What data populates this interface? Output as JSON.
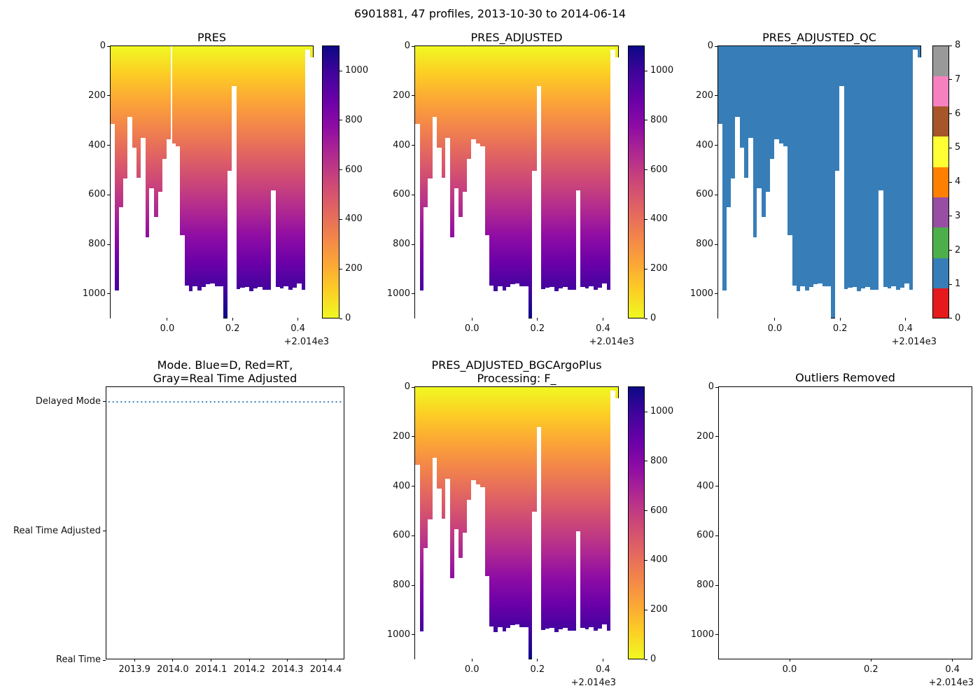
{
  "figure": {
    "title": "6901881, 47 profiles, 2013-10-30 to 2014-06-14"
  },
  "chart_data": {
    "type": "heatmap",
    "figure_title": "6901881, 47 profiles, 2013-10-30 to 2014-06-14",
    "n_profiles": 47,
    "x_range": [
      2013.8264,
      2014.4503
    ],
    "depth_axis_max": 1102,
    "profile_depths": [
      315,
      985,
      651,
      534,
      284,
      409,
      531,
      369,
      770,
      574,
      690,
      588,
      456,
      376,
      392,
      403,
      762,
      966,
      990,
      970,
      985,
      972,
      960,
      958,
      969,
      969,
      1150,
      503,
      160,
      981,
      975,
      973,
      988,
      979,
      973,
      983,
      983,
      583,
      973,
      979,
      969,
      983,
      974,
      958,
      983,
      15,
      45
    ],
    "plasma_stops": [
      "#f0f921",
      "#fcce25",
      "#fca636",
      "#f2844b",
      "#e16462",
      "#cc4778",
      "#b12a90",
      "#8f0da4",
      "#6a00a8",
      "#41049d",
      "#0d0887"
    ],
    "qc_bar_color": "#377eb8",
    "set1_colors": [
      "#e41a1c",
      "#377eb8",
      "#4daf4a",
      "#984ea3",
      "#ff7f00",
      "#ffff33",
      "#a65628",
      "#f781bf",
      "#999999"
    ],
    "panels": [
      {
        "id": "pres",
        "title": "PRES",
        "kind": "profile-pcolor",
        "cmap": "plasma_r",
        "yticks": [
          0,
          200,
          400,
          600,
          800,
          1000
        ],
        "xticks": [
          {
            "label": "0.0",
            "value": 2014.0
          },
          {
            "label": "0.2",
            "value": 2014.2
          },
          {
            "label": "0.4",
            "value": 2014.4
          }
        ],
        "offset_label": "+2.014e3",
        "surface_gap_line": {
          "x_frac": 0.2966,
          "depth": 392
        },
        "colorbar": {
          "kind": "gradient",
          "ticks": [
            0,
            200,
            400,
            600,
            800,
            1000
          ],
          "vmin": 0,
          "vmax": 1102
        }
      },
      {
        "id": "pres_adjusted",
        "title": "PRES_ADJUSTED",
        "kind": "profile-pcolor",
        "cmap": "plasma_r",
        "yticks": [
          0,
          200,
          400,
          600,
          800,
          1000
        ],
        "xticks": [
          {
            "label": "0.0",
            "value": 2014.0
          },
          {
            "label": "0.2",
            "value": 2014.2
          },
          {
            "label": "0.4",
            "value": 2014.4
          }
        ],
        "offset_label": "+2.014e3",
        "colorbar": {
          "kind": "gradient",
          "ticks": [
            0,
            200,
            400,
            600,
            800,
            1000
          ],
          "vmin": 0,
          "vmax": 1102
        }
      },
      {
        "id": "qc",
        "title": "PRES_ADJUSTED_QC",
        "kind": "profile-solid",
        "qc_value": 1,
        "yticks": [
          0,
          200,
          400,
          600,
          800,
          1000
        ],
        "xticks": [
          {
            "label": "0.0",
            "value": 2014.0
          },
          {
            "label": "0.2",
            "value": 2014.2
          },
          {
            "label": "0.4",
            "value": 2014.4
          }
        ],
        "offset_label": "+2.014e3",
        "colorbar": {
          "kind": "categorical",
          "ticks": [
            0,
            1,
            2,
            3,
            4,
            5,
            6,
            7,
            8
          ]
        }
      },
      {
        "id": "mode",
        "title": "Mode. Blue=D, Red=RT,\nGray=Real Time Adjusted",
        "kind": "mode-line",
        "yticks": [
          {
            "label": "Delayed Mode",
            "pos": 0.0538
          },
          {
            "label": "Real Time Adjusted",
            "pos": 0.528
          },
          {
            "label": "Real Time",
            "pos": 1.0
          }
        ],
        "xticks": [
          {
            "label": "2013.9",
            "value": 2013.9
          },
          {
            "label": "2014.0",
            "value": 2014.0
          },
          {
            "label": "2014.1",
            "value": 2014.1
          },
          {
            "label": "2014.2",
            "value": 2014.2
          },
          {
            "label": "2014.3",
            "value": 2014.3
          },
          {
            "label": "2014.4",
            "value": 2014.4
          }
        ],
        "line": {
          "y_pos": 0.0538,
          "style": "dotted",
          "color": "#3379b5",
          "meaning": "Delayed Mode for all profiles"
        }
      },
      {
        "id": "bgc",
        "title": "PRES_ADJUSTED_BGCArgoPlus\nProcessing: F_",
        "kind": "profile-pcolor",
        "cmap": "plasma_r",
        "yticks": [
          0,
          200,
          400,
          600,
          800,
          1000
        ],
        "xticks": [
          {
            "label": "0.0",
            "value": 2014.0
          },
          {
            "label": "0.2",
            "value": 2014.2
          },
          {
            "label": "0.4",
            "value": 2014.4
          }
        ],
        "offset_label": "+2.014e3",
        "colorbar": {
          "kind": "gradient",
          "ticks": [
            0,
            200,
            400,
            600,
            800,
            1000
          ],
          "vmin": 0,
          "vmax": 1102
        }
      },
      {
        "id": "outliers",
        "title": "Outliers Removed",
        "kind": "empty",
        "yticks": [
          0,
          200,
          400,
          600,
          800,
          1000
        ],
        "xticks": [
          {
            "label": "0.0",
            "value": 2014.0
          },
          {
            "label": "0.2",
            "value": 2014.2
          },
          {
            "label": "0.4",
            "value": 2014.4
          }
        ],
        "offset_label": "+2.014e3"
      }
    ]
  }
}
